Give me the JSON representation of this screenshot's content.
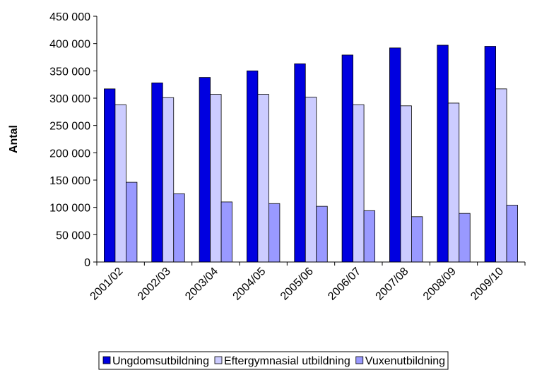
{
  "chart_data": {
    "type": "bar",
    "y_label": "Antal",
    "categories": [
      "2001/02",
      "2002/03",
      "2003/04",
      "2004/05",
      "2005/06",
      "2006/07",
      "2007/08",
      "2008/09",
      "2009/10"
    ],
    "series": [
      {
        "name": "Ungdomsutbildning",
        "color": "#0000e0",
        "values": [
          317000,
          328000,
          338000,
          350000,
          363000,
          379000,
          392000,
          397000,
          395000
        ]
      },
      {
        "name": "Eftergymnasial utbildning",
        "color": "#ccccff",
        "values": [
          288000,
          301000,
          307000,
          307000,
          302000,
          288000,
          286000,
          291000,
          317000
        ]
      },
      {
        "name": "Vuxenutbildning",
        "color": "#9999ff",
        "values": [
          146000,
          125000,
          110000,
          107000,
          102000,
          94000,
          83000,
          89000,
          104000
        ]
      }
    ],
    "ylim": [
      0,
      450000
    ],
    "yticks": [
      0,
      {
        "value": 50000,
        "label": "50 000"
      },
      {
        "value": 100000,
        "label": "100 000"
      },
      {
        "value": 150000,
        "label": "150 000"
      },
      {
        "value": 200000,
        "label": "200 000"
      },
      {
        "value": 250000,
        "label": "250 000"
      },
      {
        "value": 300000,
        "label": "300 000"
      },
      {
        "value": 350000,
        "label": "350 000"
      },
      {
        "value": 400000,
        "label": "400 000"
      },
      {
        "value": 450000,
        "label": "450 000"
      }
    ],
    "grid": false,
    "legend": "bottom"
  }
}
